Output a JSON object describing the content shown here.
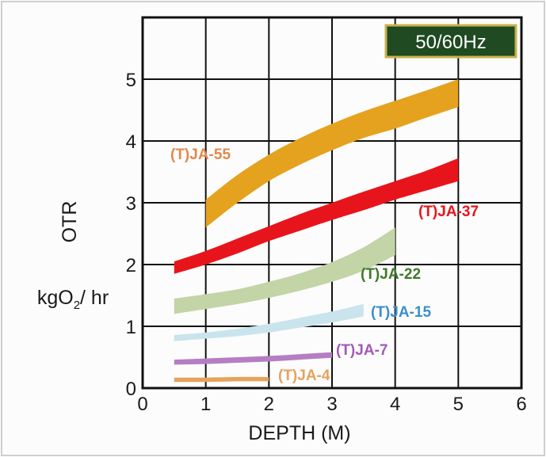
{
  "chart_data": {
    "type": "area",
    "title": "",
    "badge": "50/60Hz",
    "xlabel": "DEPTH (M)",
    "ylabel": "OTR",
    "yunit": {
      "prefix": "kgO",
      "sub": "2",
      "suffix": "/ hr"
    },
    "xlim": [
      0,
      6
    ],
    "ylim": [
      0,
      6
    ],
    "x_ticks": [
      "0",
      "1",
      "2",
      "3",
      "4",
      "5",
      "6"
    ],
    "y_ticks": [
      "0",
      "1",
      "2",
      "3",
      "4",
      "5"
    ],
    "grid": true,
    "colors": {
      "frame": "#111111",
      "grid": "#111111",
      "badge_bg": "#1f4a22",
      "badge_border": "#c9b24a"
    },
    "series": [
      {
        "name": "(T)JA-55",
        "color": "#e5a21f",
        "label_color": "#e08a4e",
        "x": [
          1.0,
          1.5,
          2.0,
          2.5,
          3.0,
          3.5,
          4.0,
          4.5,
          5.0
        ],
        "y_low": [
          2.6,
          3.0,
          3.35,
          3.62,
          3.85,
          4.05,
          4.2,
          4.38,
          4.55
        ],
        "y_high": [
          3.05,
          3.45,
          3.78,
          4.05,
          4.28,
          4.48,
          4.65,
          4.82,
          5.0
        ]
      },
      {
        "name": "(T)JA-37",
        "color": "#e8141c",
        "label_color": "#e8141c",
        "x": [
          0.5,
          1.0,
          1.5,
          2.0,
          2.5,
          3.0,
          3.5,
          4.0,
          4.5,
          5.0
        ],
        "y_low": [
          1.85,
          2.0,
          2.18,
          2.38,
          2.55,
          2.72,
          2.88,
          3.05,
          3.2,
          3.35
        ],
        "y_high": [
          2.05,
          2.22,
          2.42,
          2.62,
          2.82,
          3.0,
          3.18,
          3.35,
          3.52,
          3.72
        ]
      },
      {
        "name": "(T)JA-22",
        "color": "#c3d4a6",
        "label_color": "#3f7a2a",
        "x": [
          0.5,
          1.0,
          1.5,
          2.0,
          2.5,
          3.0,
          3.5,
          4.0
        ],
        "y_low": [
          1.2,
          1.28,
          1.36,
          1.46,
          1.58,
          1.72,
          1.9,
          2.15
        ],
        "y_high": [
          1.45,
          1.52,
          1.6,
          1.72,
          1.86,
          2.04,
          2.28,
          2.6
        ]
      },
      {
        "name": "(T)JA-15",
        "color": "#c9e4ec",
        "label_color": "#3a8fcb",
        "x": [
          0.5,
          1.0,
          1.5,
          2.0,
          2.5,
          3.0,
          3.5
        ],
        "y_low": [
          0.76,
          0.8,
          0.84,
          0.9,
          0.98,
          1.06,
          1.16
        ],
        "y_high": [
          0.86,
          0.9,
          0.96,
          1.04,
          1.14,
          1.24,
          1.36
        ]
      },
      {
        "name": "(T)JA-7",
        "color": "#b57ec2",
        "label_color": "#a35ab4",
        "x": [
          0.5,
          1.0,
          1.5,
          2.0,
          2.5,
          3.0
        ],
        "y_low": [
          0.38,
          0.39,
          0.41,
          0.43,
          0.46,
          0.49
        ],
        "y_high": [
          0.46,
          0.48,
          0.5,
          0.52,
          0.55,
          0.58
        ]
      },
      {
        "name": "(T)JA-4",
        "color": "#e5a35c",
        "label_color": "#e5a35c",
        "x": [
          0.5,
          1.0,
          1.5,
          2.0
        ],
        "y_low": [
          0.1,
          0.1,
          0.11,
          0.11
        ],
        "y_high": [
          0.17,
          0.17,
          0.18,
          0.18
        ]
      }
    ]
  }
}
